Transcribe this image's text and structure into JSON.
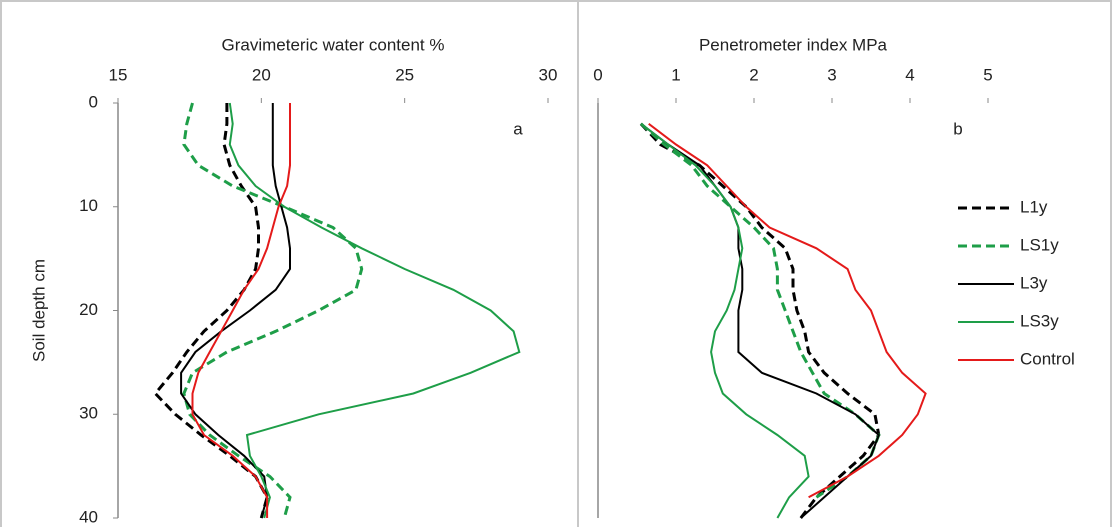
{
  "chart_data": [
    {
      "type": "line",
      "title": "Gravimeteric water content %",
      "ylabel": "Soil depth cm",
      "annotation": "a",
      "xlim": [
        15,
        30
      ],
      "xticks": [
        15,
        20,
        25,
        30
      ],
      "ylim": [
        0,
        40
      ],
      "yticks": [
        0,
        10,
        20,
        30,
        40
      ],
      "y_inverted": true,
      "y": [
        0,
        2,
        4,
        6,
        8,
        10,
        12,
        14,
        16,
        18,
        20,
        22,
        24,
        26,
        28,
        30,
        32,
        34,
        36,
        38,
        40
      ],
      "series": [
        {
          "color": "#000000",
          "dash": true,
          "values": [
            18.8,
            18.8,
            18.7,
            18.9,
            19.3,
            19.8,
            19.9,
            19.9,
            19.8,
            19.4,
            18.8,
            18.0,
            17.4,
            16.9,
            16.3,
            17.0,
            17.9,
            18.9,
            19.8,
            20.2,
            20.0
          ]
        },
        {
          "color": "#1e9e48",
          "dash": true,
          "values": [
            17.6,
            17.4,
            17.3,
            17.8,
            19.0,
            20.8,
            22.5,
            23.3,
            23.5,
            23.3,
            22.0,
            20.5,
            18.8,
            17.6,
            17.3,
            17.5,
            18.2,
            19.2,
            20.3,
            21.0,
            20.8
          ]
        },
        {
          "color": "#000000",
          "dash": false,
          "values": [
            20.4,
            20.4,
            20.4,
            20.4,
            20.5,
            20.7,
            20.9,
            21.0,
            21.0,
            20.5,
            19.6,
            18.6,
            17.7,
            17.2,
            17.2,
            17.7,
            18.5,
            19.4,
            20.1,
            20.2,
            20.0
          ]
        },
        {
          "color": "#1e9e48",
          "dash": false,
          "values": [
            18.9,
            19.0,
            18.9,
            19.2,
            19.8,
            20.8,
            22.1,
            23.5,
            25.0,
            26.7,
            28.0,
            28.8,
            29.0,
            27.3,
            25.3,
            22.0,
            19.5,
            19.6,
            20.0,
            20.3,
            20.1
          ]
        },
        {
          "color": "#e41a1a",
          "dash": false,
          "values": [
            21.0,
            21.0,
            21.0,
            21.0,
            20.9,
            20.6,
            20.4,
            20.2,
            19.9,
            19.4,
            19.0,
            18.6,
            18.2,
            17.8,
            17.6,
            17.6,
            18.0,
            19.0,
            19.8,
            20.2,
            20.2
          ]
        }
      ]
    },
    {
      "type": "line",
      "title": "Penetrometer index MPa",
      "annotation": "b",
      "xlim": [
        0,
        5
      ],
      "xticks": [
        0,
        1,
        2,
        3,
        4,
        5
      ],
      "ylim": [
        0,
        40
      ],
      "y_inverted": true,
      "y": [
        0,
        2,
        4,
        6,
        8,
        10,
        12,
        14,
        16,
        18,
        20,
        22,
        24,
        26,
        28,
        30,
        32,
        34,
        36,
        38,
        40
      ],
      "series": [
        {
          "name": "L1y",
          "color": "#000000",
          "dash": true,
          "values": [
            null,
            0.55,
            0.8,
            1.3,
            1.6,
            1.9,
            2.1,
            2.4,
            2.5,
            2.5,
            2.55,
            2.65,
            2.7,
            2.9,
            3.2,
            3.55,
            3.6,
            3.4,
            3.1,
            2.8,
            2.6
          ]
        },
        {
          "name": "LS1y",
          "color": "#1e9e48",
          "dash": true,
          "values": [
            null,
            0.55,
            0.85,
            1.2,
            1.4,
            1.7,
            2.0,
            2.25,
            2.3,
            2.3,
            2.4,
            2.5,
            2.6,
            2.75,
            2.9,
            3.3,
            3.6,
            3.5,
            3.2,
            2.8,
            null
          ]
        },
        {
          "name": "L3y",
          "color": "#000000",
          "dash": false,
          "values": [
            null,
            0.55,
            0.9,
            1.3,
            1.5,
            1.7,
            1.8,
            1.8,
            1.85,
            1.85,
            1.8,
            1.8,
            1.8,
            2.1,
            2.8,
            3.3,
            3.6,
            3.5,
            3.2,
            2.9,
            2.6
          ]
        },
        {
          "name": "LS3y",
          "color": "#1e9e48",
          "dash": false,
          "values": [
            null,
            0.55,
            0.9,
            1.25,
            1.5,
            1.7,
            1.8,
            1.85,
            1.8,
            1.75,
            1.65,
            1.5,
            1.45,
            1.5,
            1.6,
            1.9,
            2.3,
            2.65,
            2.7,
            2.45,
            2.3
          ]
        },
        {
          "name": "Control",
          "color": "#e41a1a",
          "dash": false,
          "values": [
            null,
            0.65,
            1.0,
            1.4,
            1.65,
            1.9,
            2.2,
            2.8,
            3.2,
            3.3,
            3.5,
            3.6,
            3.7,
            3.9,
            4.2,
            4.1,
            3.9,
            3.6,
            3.2,
            2.7,
            null
          ]
        }
      ]
    }
  ]
}
